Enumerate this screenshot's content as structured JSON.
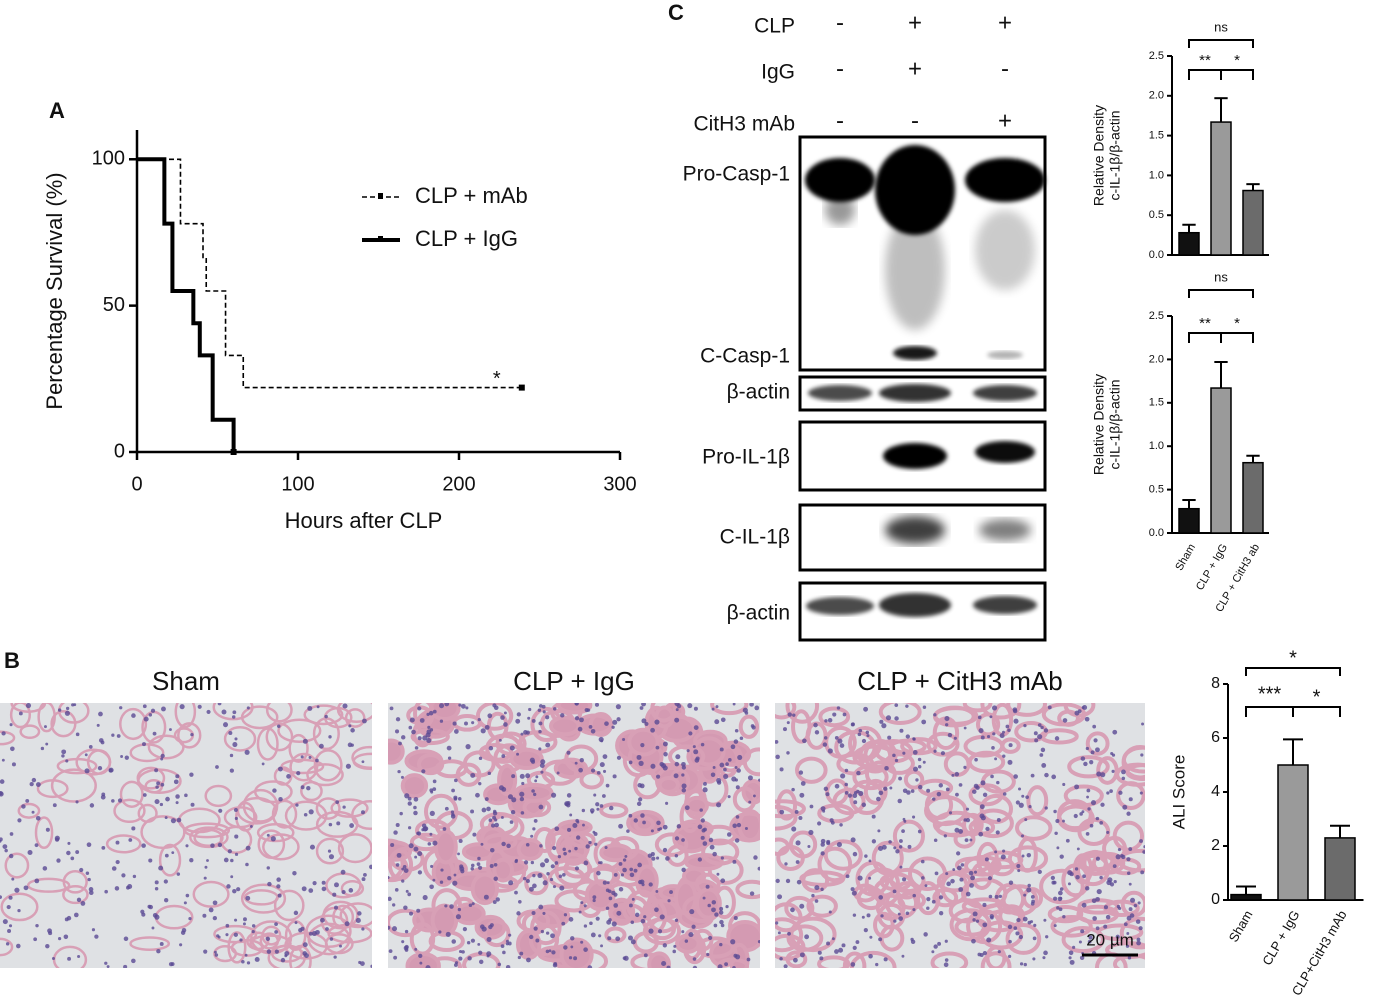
{
  "panels": [
    "A",
    "B",
    "C"
  ],
  "chart_data": [
    {
      "type": "line",
      "step": true,
      "xlabel": "Hours after CLP",
      "ylabel": "Percentage Survival (%)",
      "xlim": [
        0,
        300
      ],
      "ylim": [
        0,
        110
      ],
      "xticks": [
        0,
        100,
        200,
        300
      ],
      "yticks": [
        0,
        50,
        100
      ],
      "annotation": "*",
      "series": [
        {
          "name": "CLP + mAb",
          "color": "#000000",
          "dash": true,
          "x": [
            0,
            27,
            41,
            43,
            55,
            66,
            239
          ],
          "values": [
            100,
            78,
            66,
            55,
            33,
            22,
            22
          ]
        },
        {
          "name": "CLP + IgG",
          "color": "#000000",
          "dash": false,
          "x": [
            0,
            17,
            22,
            35,
            39,
            47,
            60
          ],
          "values": [
            100,
            78,
            55,
            44,
            33,
            11,
            0
          ]
        }
      ]
    },
    {
      "type": "bar",
      "categories": [
        null,
        null,
        null
      ],
      "values": [
        0.28,
        1.67,
        0.81
      ],
      "errors": [
        0.1,
        0.3,
        0.08
      ],
      "colors": [
        "#111111",
        "#9a9a9a",
        "#6b6b6b"
      ],
      "ylabel": [
        "Relative Density",
        "c-IL-1β/β-actin"
      ],
      "ylim": [
        0,
        2.5
      ],
      "yticks": [
        {
          "value": 0,
          "label": "0.0"
        },
        0.5,
        {
          "value": 1,
          "label": "1.0"
        },
        1.5,
        {
          "value": 2,
          "label": "2.0"
        },
        2.5
      ],
      "significance": [
        "**",
        "*",
        "ns"
      ]
    },
    {
      "type": "bar",
      "categories": [
        "Sham",
        "CLP + IgG",
        "CLP + CitH3 ab"
      ],
      "values": [
        0.28,
        1.67,
        0.81
      ],
      "errors": [
        0.1,
        0.3,
        0.08
      ],
      "colors": [
        "#111111",
        "#9a9a9a",
        "#6b6b6b"
      ],
      "ylabel": [
        "Relative Density",
        "c-IL-1β/β-actin"
      ],
      "ylim": [
        0,
        2.5
      ],
      "yticks": [
        {
          "value": 0,
          "label": "0.0"
        },
        0.5,
        {
          "value": 1,
          "label": "1.0"
        },
        1.5,
        {
          "value": 2,
          "label": "2.0"
        },
        2.5
      ],
      "significance": [
        "**",
        "*",
        "ns"
      ]
    },
    {
      "type": "bar",
      "categories": [
        "Sham",
        "CLP + IgG",
        "CLP+CitH3 mAb"
      ],
      "values": [
        0.2,
        5.0,
        2.3
      ],
      "errors": [
        0.3,
        0.95,
        0.45
      ],
      "colors": [
        "#111111",
        "#9a9a9a",
        "#6b6b6b"
      ],
      "ylabel": [
        "ALI Score"
      ],
      "ylim": [
        0,
        8
      ],
      "yticks": [
        0,
        2,
        4,
        6,
        8
      ],
      "significance": [
        "***",
        "*",
        "*"
      ]
    }
  ],
  "blot": {
    "conditions": [
      {
        "label": "CLP",
        "marks": [
          "-",
          "+",
          "+"
        ]
      },
      {
        "label": "IgG",
        "marks": [
          "-",
          "+",
          "-"
        ]
      },
      {
        "label": "CitH3 mAb",
        "marks": [
          "-",
          "-",
          "+"
        ]
      }
    ],
    "bands": [
      "Pro-Casp-1",
      "C-Casp-1",
      "β-actin",
      "Pro-IL-1β",
      "C-IL-1β",
      "β-actin"
    ]
  },
  "histology": {
    "titles": [
      "Sham",
      "CLP + IgG",
      "CLP + CitH3 mAb"
    ],
    "scale_bar": "20 µm"
  }
}
